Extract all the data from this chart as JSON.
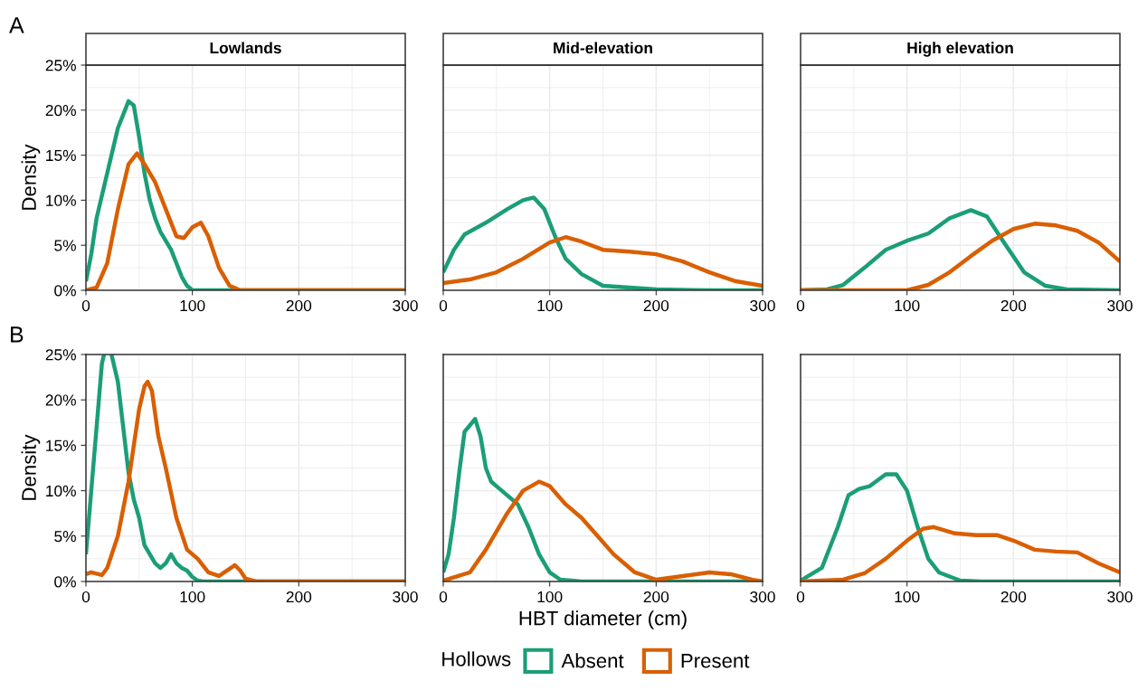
{
  "chart_data": [
    {
      "type": "line",
      "title": "Lowlands",
      "ylabel": "Density",
      "annotations": [
        "A"
      ],
      "legend": "bottom",
      "legend_title": "Hollows",
      "grid": true,
      "xlim": [
        0,
        300
      ],
      "xticks": [
        0,
        100,
        200,
        300
      ],
      "ylim": [
        0,
        25
      ],
      "yticks": [
        {
          "value": 0,
          "label": "0%"
        },
        {
          "value": 5,
          "label": "5%"
        },
        {
          "value": 10,
          "label": "10%"
        },
        {
          "value": 15,
          "label": "15%"
        },
        {
          "value": 20,
          "label": "20%"
        },
        {
          "value": 25,
          "label": "25%"
        }
      ],
      "series": [
        {
          "name": "Absent",
          "color": "#1b9e77",
          "x": [
            0,
            5,
            10,
            20,
            30,
            40,
            45,
            50,
            55,
            60,
            65,
            70,
            80,
            90,
            95,
            100,
            300
          ],
          "values": [
            1,
            4,
            8,
            13,
            18,
            21,
            20.5,
            17,
            13,
            10,
            8,
            6.5,
            4.5,
            1.5,
            0.5,
            0,
            0
          ]
        },
        {
          "name": "Present",
          "color": "#d95f02",
          "x": [
            0,
            10,
            20,
            30,
            40,
            48,
            55,
            65,
            75,
            85,
            92,
            100,
            108,
            115,
            125,
            135,
            145,
            300
          ],
          "values": [
            0,
            0.3,
            3,
            9,
            14,
            15.2,
            14,
            12,
            9,
            6,
            5.8,
            7,
            7.5,
            6,
            2.5,
            0.5,
            0,
            0
          ]
        }
      ]
    },
    {
      "type": "line",
      "title": "Mid-elevation",
      "grid": true,
      "tick_labels": "x",
      "xlim": [
        0,
        300
      ],
      "xticks": [
        0,
        100,
        200,
        300
      ],
      "ylim": [
        0,
        25
      ],
      "yticks": [
        {
          "value": 0,
          "label": "0%"
        },
        {
          "value": 5,
          "label": "5%"
        },
        {
          "value": 10,
          "label": "10%"
        },
        {
          "value": 15,
          "label": "15%"
        },
        {
          "value": 20,
          "label": "20%"
        },
        {
          "value": 25,
          "label": "25%"
        }
      ],
      "series": [
        {
          "name": "Absent",
          "color": "#1b9e77",
          "x": [
            0,
            10,
            20,
            40,
            60,
            75,
            85,
            95,
            105,
            115,
            130,
            150,
            175,
            200,
            250,
            300
          ],
          "values": [
            2,
            4.5,
            6.2,
            7.5,
            9,
            10,
            10.3,
            9,
            6,
            3.5,
            1.8,
            0.5,
            0.3,
            0.1,
            0,
            0
          ]
        },
        {
          "name": "Present",
          "color": "#d95f02",
          "x": [
            0,
            25,
            50,
            75,
            100,
            115,
            130,
            150,
            175,
            200,
            225,
            250,
            275,
            300
          ],
          "values": [
            0.8,
            1.2,
            2,
            3.5,
            5.3,
            5.9,
            5.4,
            4.5,
            4.3,
            4,
            3.2,
            2,
            1,
            0.5
          ]
        }
      ]
    },
    {
      "type": "line",
      "title": "High elevation",
      "grid": true,
      "tick_labels": "x",
      "xlim": [
        0,
        300
      ],
      "xticks": [
        0,
        100,
        200,
        300
      ],
      "ylim": [
        0,
        25
      ],
      "yticks": [
        {
          "value": 0,
          "label": "0%"
        },
        {
          "value": 5,
          "label": "5%"
        },
        {
          "value": 10,
          "label": "10%"
        },
        {
          "value": 15,
          "label": "15%"
        },
        {
          "value": 20,
          "label": "20%"
        },
        {
          "value": 25,
          "label": "25%"
        }
      ],
      "series": [
        {
          "name": "Absent",
          "color": "#1b9e77",
          "x": [
            0,
            25,
            40,
            60,
            80,
            100,
            120,
            140,
            160,
            175,
            190,
            210,
            230,
            250,
            300
          ],
          "values": [
            0,
            0.1,
            0.6,
            2.5,
            4.5,
            5.5,
            6.3,
            8,
            8.9,
            8.2,
            5.5,
            2,
            0.5,
            0.1,
            0
          ]
        },
        {
          "name": "Present",
          "color": "#d95f02",
          "x": [
            0,
            100,
            120,
            140,
            160,
            180,
            200,
            220,
            240,
            260,
            280,
            300
          ],
          "values": [
            0,
            0,
            0.6,
            2,
            3.8,
            5.5,
            6.8,
            7.4,
            7.2,
            6.6,
            5.3,
            3.2
          ]
        }
      ]
    },
    {
      "type": "line",
      "ylabel": "Density",
      "annotations": [
        "B"
      ],
      "grid": true,
      "xlim": [
        0,
        300
      ],
      "xticks": [
        0,
        100,
        200,
        300
      ],
      "ylim": [
        0,
        25
      ],
      "yticks": [
        {
          "value": 0,
          "label": "0%"
        },
        {
          "value": 5,
          "label": "5%"
        },
        {
          "value": 10,
          "label": "10%"
        },
        {
          "value": 15,
          "label": "15%"
        },
        {
          "value": 20,
          "label": "20%"
        },
        {
          "value": 25,
          "label": "25%"
        }
      ],
      "series": [
        {
          "name": "Absent",
          "color": "#1b9e77",
          "x": [
            0,
            5,
            10,
            15,
            17,
            20,
            24,
            30,
            35,
            40,
            45,
            50,
            55,
            60,
            65,
            70,
            75,
            80,
            85,
            90,
            95,
            100,
            105,
            110,
            150,
            300
          ],
          "values": [
            3,
            10,
            17,
            24,
            25,
            null,
            25,
            22,
            17,
            12,
            9,
            7,
            4,
            3,
            2,
            1.5,
            2,
            3,
            2,
            1.5,
            1.2,
            0.5,
            0.1,
            0,
            0,
            0
          ]
        },
        {
          "name": "Present",
          "color": "#d95f02",
          "x": [
            0,
            5,
            15,
            20,
            30,
            40,
            45,
            50,
            55,
            58,
            62,
            68,
            75,
            85,
            95,
            105,
            115,
            125,
            130,
            140,
            145,
            150,
            160,
            300
          ],
          "values": [
            0.8,
            1,
            0.7,
            1.5,
            5,
            11,
            15,
            19,
            21.5,
            22,
            21,
            16,
            12.5,
            7,
            3.5,
            2.5,
            1,
            0.6,
            1,
            1.8,
            1.2,
            0.3,
            0,
            0
          ]
        }
      ]
    },
    {
      "type": "line",
      "xlabel": "HBT diameter (cm)",
      "grid": true,
      "tick_labels": "x",
      "xlim": [
        0,
        300
      ],
      "xticks": [
        0,
        100,
        200,
        300
      ],
      "ylim": [
        0,
        25
      ],
      "yticks": [
        {
          "value": 0,
          "label": "0%"
        },
        {
          "value": 5,
          "label": "5%"
        },
        {
          "value": 10,
          "label": "10%"
        },
        {
          "value": 15,
          "label": "15%"
        },
        {
          "value": 20,
          "label": "20%"
        },
        {
          "value": 25,
          "label": "25%"
        }
      ],
      "series": [
        {
          "name": "Absent",
          "color": "#1b9e77",
          "x": [
            0,
            5,
            10,
            15,
            20,
            30,
            35,
            40,
            45,
            50,
            60,
            70,
            80,
            90,
            100,
            110,
            130,
            300
          ],
          "values": [
            1,
            3,
            7,
            12,
            16.5,
            17.9,
            16,
            12.5,
            11,
            10.5,
            9.5,
            8.5,
            6,
            3,
            1,
            0.2,
            0,
            0
          ]
        },
        {
          "name": "Present",
          "color": "#d95f02",
          "x": [
            0,
            25,
            40,
            60,
            75,
            90,
            100,
            115,
            130,
            145,
            160,
            180,
            200,
            225,
            250,
            270,
            290,
            300
          ],
          "values": [
            0.1,
            1,
            3.5,
            7.5,
            10,
            11,
            10.5,
            8.5,
            7,
            5,
            3,
            1,
            0.2,
            0.6,
            1,
            0.8,
            0.2,
            0
          ]
        }
      ]
    },
    {
      "type": "line",
      "grid": true,
      "tick_labels": "x",
      "xlim": [
        0,
        300
      ],
      "xticks": [
        0,
        100,
        200,
        300
      ],
      "ylim": [
        0,
        25
      ],
      "yticks": [
        {
          "value": 0,
          "label": "0%"
        },
        {
          "value": 5,
          "label": "5%"
        },
        {
          "value": 10,
          "label": "10%"
        },
        {
          "value": 15,
          "label": "15%"
        },
        {
          "value": 20,
          "label": "20%"
        },
        {
          "value": 25,
          "label": "25%"
        }
      ],
      "series": [
        {
          "name": "Absent",
          "color": "#1b9e77",
          "x": [
            0,
            20,
            35,
            45,
            55,
            65,
            80,
            90,
            100,
            110,
            120,
            130,
            150,
            170,
            300
          ],
          "values": [
            0.1,
            1.5,
            6,
            9.5,
            10.2,
            10.5,
            11.8,
            11.8,
            10,
            6,
            2.5,
            1,
            0.1,
            0,
            0
          ]
        },
        {
          "name": "Present",
          "color": "#d95f02",
          "x": [
            0,
            40,
            60,
            80,
            100,
            115,
            125,
            145,
            165,
            185,
            200,
            220,
            240,
            260,
            280,
            300
          ],
          "values": [
            0,
            0.2,
            0.9,
            2.5,
            4.5,
            5.8,
            6,
            5.3,
            5.1,
            5.1,
            4.5,
            3.5,
            3.3,
            3.2,
            2,
            1
          ]
        }
      ]
    }
  ]
}
